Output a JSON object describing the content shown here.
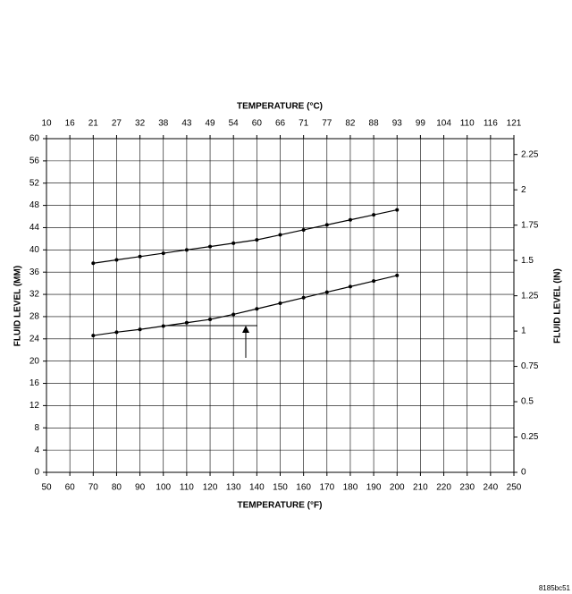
{
  "chart_data": {
    "type": "line",
    "x2_title": "TEMPERATURE (°C)",
    "x_title": "TEMPERATURE (°F)",
    "y_title": "FLUID LEVEL (MM)",
    "y2_title": "FLUID LEVEL (IN)",
    "figure_id": "8185bc51",
    "xlim": [
      50,
      250
    ],
    "xticks": [
      50,
      60,
      70,
      80,
      90,
      100,
      110,
      120,
      130,
      140,
      150,
      160,
      170,
      180,
      190,
      200,
      210,
      220,
      230,
      240,
      250
    ],
    "x2ticks": [
      {
        "value": 50,
        "label": "10"
      },
      {
        "value": 60,
        "label": "16"
      },
      {
        "value": 70,
        "label": "21"
      },
      {
        "value": 80,
        "label": "27"
      },
      {
        "value": 90,
        "label": "32"
      },
      {
        "value": 100,
        "label": "38"
      },
      {
        "value": 110,
        "label": "43"
      },
      {
        "value": 120,
        "label": "49"
      },
      {
        "value": 130,
        "label": "54"
      },
      {
        "value": 140,
        "label": "60"
      },
      {
        "value": 150,
        "label": "66"
      },
      {
        "value": 160,
        "label": "71"
      },
      {
        "value": 170,
        "label": "77"
      },
      {
        "value": 180,
        "label": "82"
      },
      {
        "value": 190,
        "label": "88"
      },
      {
        "value": 200,
        "label": "93"
      },
      {
        "value": 210,
        "label": "99"
      },
      {
        "value": 220,
        "label": "104"
      },
      {
        "value": 230,
        "label": "110"
      },
      {
        "value": 240,
        "label": "116"
      },
      {
        "value": 250,
        "label": "121"
      }
    ],
    "ylim": [
      0,
      60
    ],
    "yticks": [
      0,
      4,
      8,
      12,
      16,
      20,
      24,
      28,
      32,
      36,
      40,
      44,
      48,
      52,
      56,
      60
    ],
    "y2lim": [
      0,
      2.3622
    ],
    "y2ticks": [
      0,
      0.25,
      0.5,
      0.75,
      1,
      1.25,
      1.5,
      1.75,
      2,
      2.25
    ],
    "grid": true,
    "x": [
      70,
      80,
      90,
      100,
      110,
      120,
      130,
      140,
      150,
      160,
      170,
      180,
      190,
      200
    ],
    "series": [
      {
        "color": "#000000",
        "values": [
          37.6,
          38.2,
          38.8,
          39.4,
          40.0,
          40.6,
          41.2,
          41.8,
          42.7,
          43.6,
          44.5,
          45.4,
          46.3,
          47.2
        ]
      },
      {
        "color": "#000000",
        "values": [
          24.6,
          25.2,
          25.7,
          26.3,
          26.9,
          27.5,
          28.4,
          29.4,
          30.4,
          31.4,
          32.4,
          33.4,
          34.4,
          35.4
        ]
      }
    ]
  }
}
